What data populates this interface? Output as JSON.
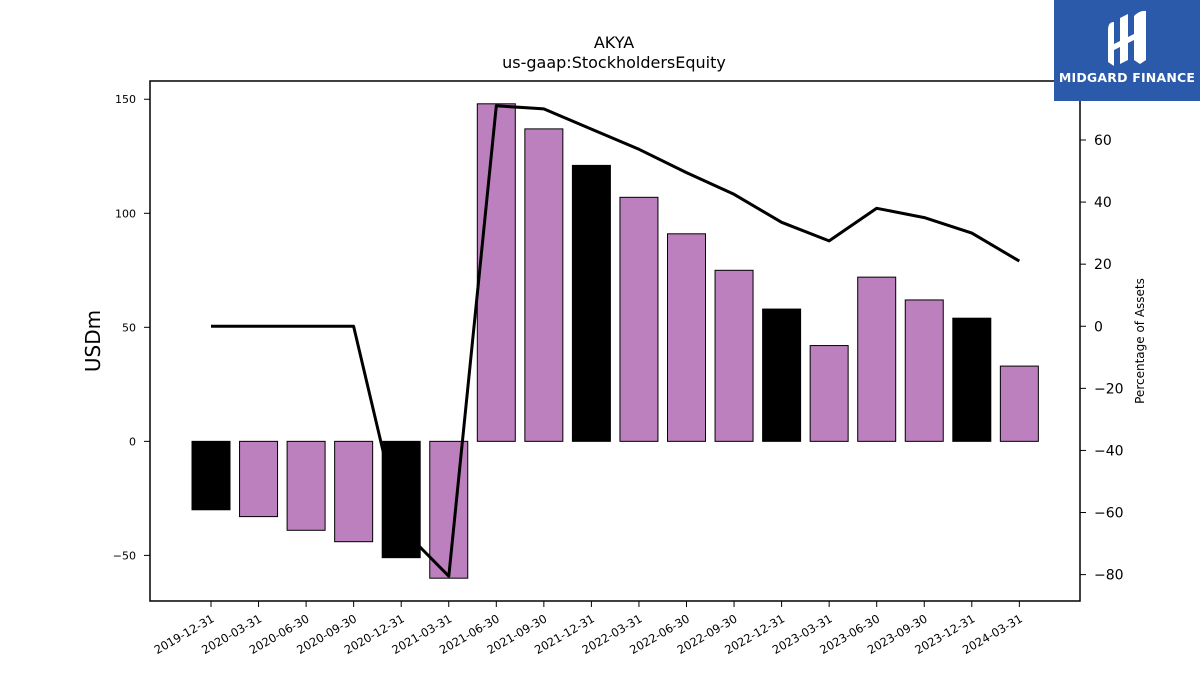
{
  "brand": {
    "name": "MIDGARD FINANCE",
    "color": "#2b5aab",
    "icon": "midgard-logo-icon"
  },
  "chart_data": {
    "type": "bar",
    "title": "AKYA",
    "subtitle": "us-gaap:StockholdersEquity",
    "ylabel": "USDm",
    "y2label": "Percentage of Assets",
    "ylim": [
      -70,
      158
    ],
    "y2lim": [
      -88.5,
      79
    ],
    "yticks": [
      -50,
      0,
      50,
      100,
      150
    ],
    "y2ticks": [
      -80,
      -60,
      -40,
      -20,
      0,
      20,
      40,
      60
    ],
    "categories": [
      "2019-12-31",
      "2020-03-31",
      "2020-06-30",
      "2020-09-30",
      "2020-12-31",
      "2021-03-31",
      "2021-06-30",
      "2021-09-30",
      "2021-12-31",
      "2022-03-31",
      "2022-06-30",
      "2022-09-30",
      "2022-12-31",
      "2023-03-31",
      "2023-06-30",
      "2023-09-30",
      "2023-12-31",
      "2024-03-31"
    ],
    "values": [
      -30,
      -33,
      -39,
      -44,
      -51,
      -60,
      148,
      137,
      121,
      107,
      91,
      75,
      58,
      42,
      72,
      62,
      54,
      33
    ],
    "bar_colors": [
      "#000000",
      "#bb80bd",
      "#bb80bd",
      "#bb80bd",
      "#000000",
      "#bb80bd",
      "#bb80bd",
      "#bb80bd",
      "#000000",
      "#bb80bd",
      "#bb80bd",
      "#bb80bd",
      "#000000",
      "#bb80bd",
      "#bb80bd",
      "#bb80bd",
      "#000000",
      "#bb80bd"
    ],
    "line_values": [
      0,
      0,
      0,
      0,
      -65,
      -80.5,
      71,
      70,
      63.5,
      57,
      49.5,
      42.5,
      33.5,
      27.5,
      38,
      35,
      30,
      21
    ],
    "line_color": "#000000",
    "grid": false,
    "legend": "none"
  }
}
